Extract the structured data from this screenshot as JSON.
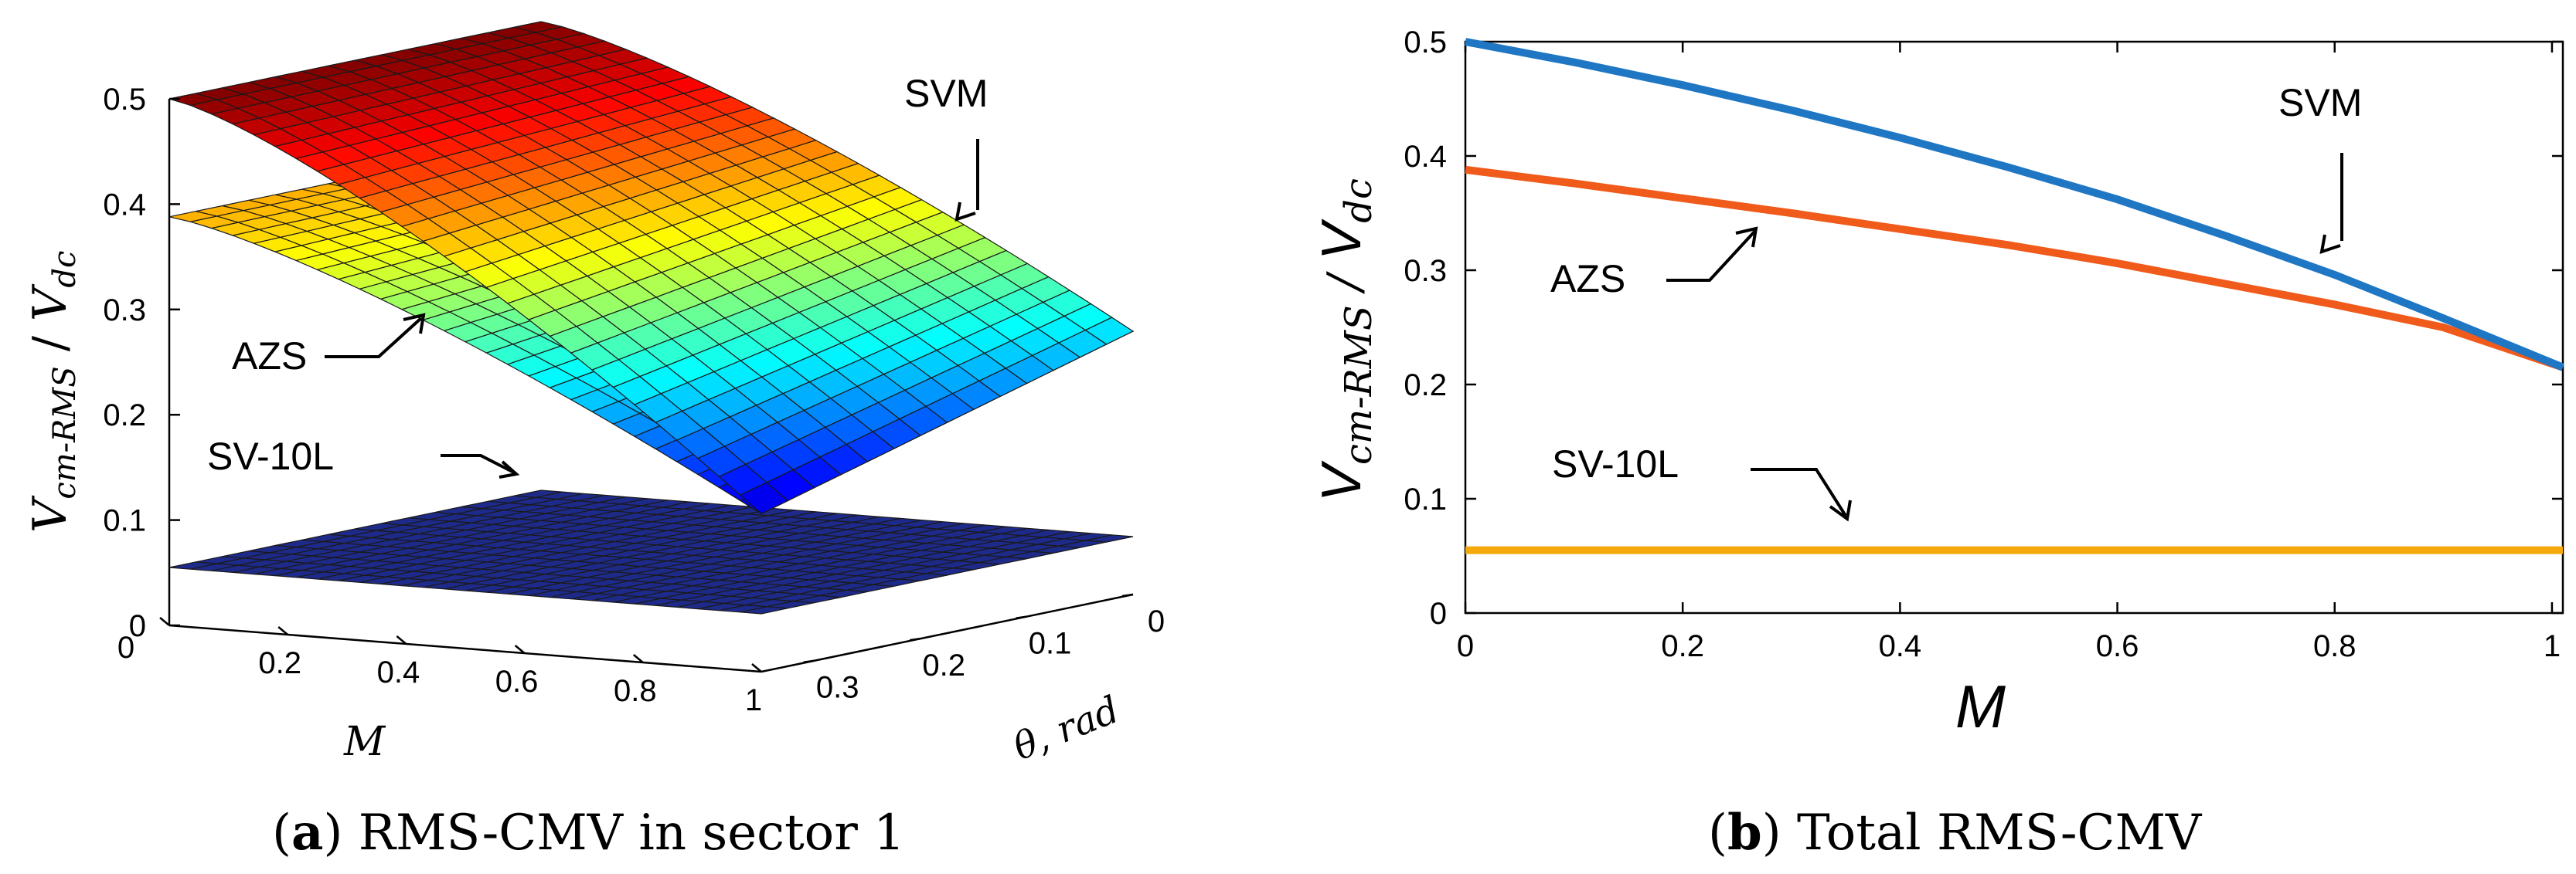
{
  "chart_data": [
    {
      "type": "surface",
      "title": "RMS-CMV in sector 1",
      "caption_label": "a",
      "caption_text": "RMS-CMV in sector 1",
      "xlabel": "M",
      "ylabel_main": "V",
      "ylabel_sub": "cm-RMS",
      "ylabel_sep": " / ",
      "ylabel_den": "V",
      "ylabel_den_sub": "dc",
      "thetalabel": "θ, rad",
      "z_ticks": [
        "0",
        "0.1",
        "0.2",
        "0.3",
        "0.4",
        "0.5"
      ],
      "m_ticks": [
        "0",
        "0.2",
        "0.4",
        "0.6",
        "0.8",
        "1"
      ],
      "theta_ticks": [
        "0",
        "0.1",
        "0.2",
        "0.3"
      ],
      "zlim": [
        0,
        0.5
      ],
      "mlim": [
        0,
        1
      ],
      "thetalim": [
        0,
        0.35
      ],
      "series": [
        {
          "name": "SVM",
          "corners": {
            "m0_theta0": 0.5,
            "m1_theta0": 0.25,
            "m0_thetaMax": 0.5,
            "m1_thetaMax": 0.15
          }
        },
        {
          "name": "AZS",
          "corners": {
            "m0_theta0": 0.388,
            "m1_theta0": 0.25,
            "m0_thetaMax": 0.388,
            "m1_thetaMax": 0.15
          }
        },
        {
          "name": "SV-10L",
          "corners": {
            "m0_theta0": 0.055,
            "m1_theta0": 0.055,
            "m0_thetaMax": 0.055,
            "m1_thetaMax": 0.055
          }
        }
      ],
      "annotations": [
        "SVM",
        "AZS",
        "SV-10L"
      ]
    },
    {
      "type": "line",
      "title": "Total RMS-CMV",
      "caption_label": "b",
      "caption_text": "Total RMS-CMV",
      "xlabel": "M",
      "ylabel_main": "V",
      "ylabel_sub": "cm-RMS",
      "ylabel_sep": " / ",
      "ylabel_den": "V",
      "ylabel_den_sub": "dc",
      "xlim": [
        0,
        1.01
      ],
      "ylim": [
        0,
        0.5
      ],
      "x_ticks": [
        "0",
        "0.2",
        "0.4",
        "0.6",
        "0.8",
        "1"
      ],
      "y_ticks": [
        "0",
        "0.1",
        "0.2",
        "0.3",
        "0.4",
        "0.5"
      ],
      "x": [
        0,
        0.1,
        0.2,
        0.3,
        0.4,
        0.5,
        0.6,
        0.7,
        0.8,
        0.9,
        1.01
      ],
      "series": [
        {
          "name": "SVM",
          "color": "#1f77c4",
          "values": [
            0.5,
            0.482,
            0.462,
            0.44,
            0.416,
            0.39,
            0.362,
            0.33,
            0.296,
            0.258,
            0.215
          ]
        },
        {
          "name": "AZS",
          "color": "#f05a1a",
          "values": [
            0.388,
            0.376,
            0.363,
            0.35,
            0.336,
            0.322,
            0.306,
            0.288,
            0.27,
            0.25,
            0.215
          ]
        },
        {
          "name": "SV-10L",
          "color": "#f5a80a",
          "values": [
            0.055,
            0.055,
            0.055,
            0.055,
            0.055,
            0.055,
            0.055,
            0.055,
            0.055,
            0.055,
            0.055
          ]
        }
      ],
      "annotations": [
        "SVM",
        "AZS",
        "SV-10L"
      ]
    }
  ]
}
